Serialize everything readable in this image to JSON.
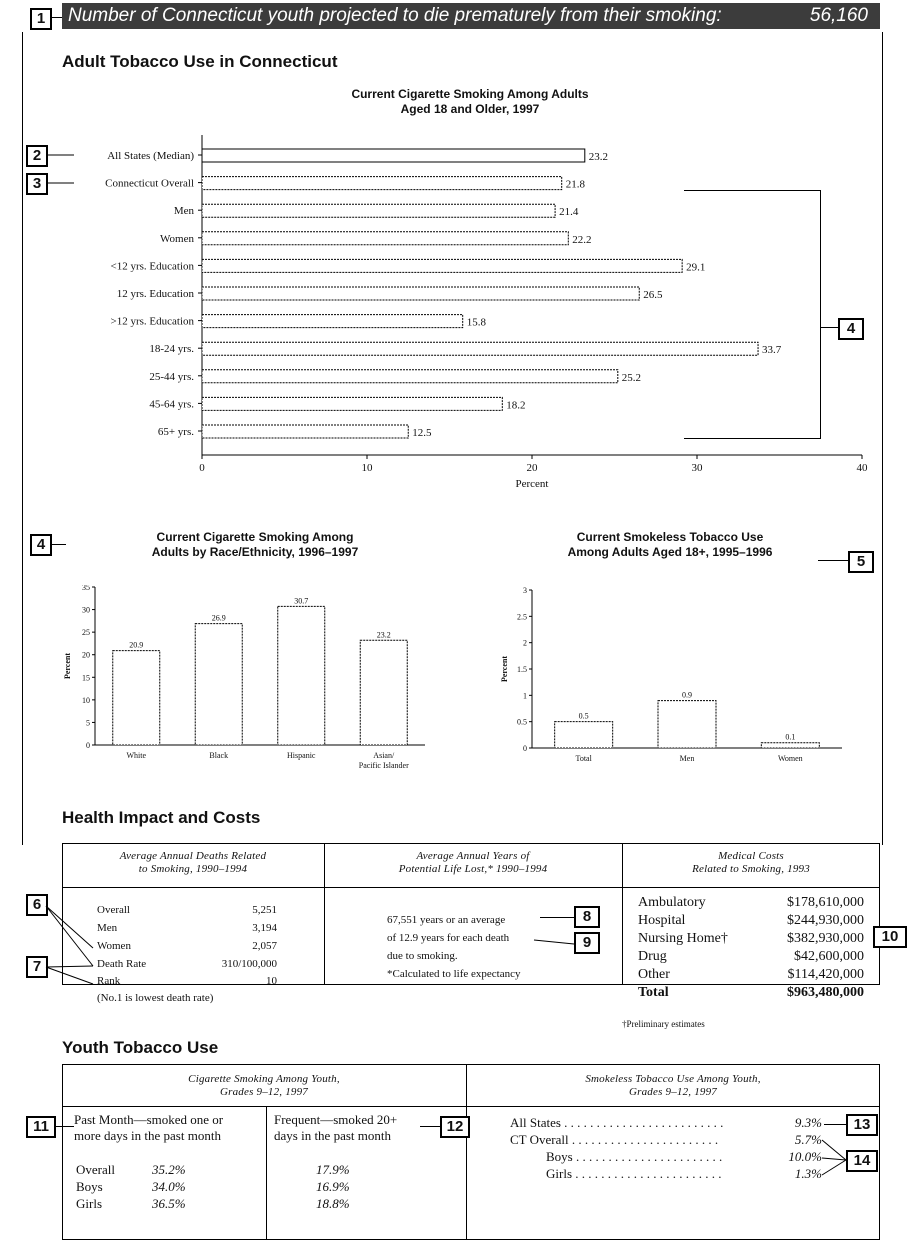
{
  "banner": {
    "text": "Number of Connecticut youth projected to die prematurely from their smoking:",
    "value": "56,160"
  },
  "callouts": {
    "c1": "1",
    "c2": "2",
    "c3": "3",
    "c4a": "4",
    "c4b": "4",
    "c5": "5",
    "c6": "6",
    "c7": "7",
    "c8": "8",
    "c9": "9",
    "c10": "10",
    "c11": "11",
    "c12": "12",
    "c13": "13",
    "c14": "14"
  },
  "adult_section": {
    "title": "Adult Tobacco Use in Connecticut"
  },
  "main_chart_title": {
    "line1": "Current Cigarette Smoking Among Adults",
    "line2": "Aged 18 and Older, 1997"
  },
  "race_chart_title": {
    "line1": "Current Cigarette Smoking Among",
    "line2": "Adults by Race/Ethnicity, 1996–1997"
  },
  "smokeless_chart_title": {
    "line1": "Current Smokeless Tobacco Use",
    "line2": "Among Adults Aged 18+, 1995–1996"
  },
  "chart_data": [
    {
      "type": "bar",
      "orientation": "horizontal",
      "title": "Current Cigarette Smoking Among Adults Aged 18 and Older, 1997",
      "categories": [
        "All States (Median)",
        "Connecticut Overall",
        "Men",
        "Women",
        "<12 yrs. Education",
        "12 yrs. Education",
        ">12 yrs. Education",
        "18-24 yrs.",
        "25-44 yrs.",
        "45-64 yrs.",
        "65+ yrs."
      ],
      "values": [
        23.2,
        21.8,
        21.4,
        22.2,
        29.1,
        26.5,
        15.8,
        33.7,
        25.2,
        18.2,
        12.5
      ],
      "value_labels": [
        "23.2",
        "21.8",
        "21.4",
        "22.2",
        "29.1",
        "26.5",
        "15.8",
        "33.7",
        "25.2",
        "18.2",
        "12.5"
      ],
      "xlim": [
        0,
        40
      ],
      "xticks": [
        "0",
        "10",
        "20",
        "30",
        "40"
      ],
      "xlabel": "Percent"
    },
    {
      "type": "bar",
      "title": "Current Cigarette Smoking Among Adults by Race/Ethnicity, 1996–1997",
      "categories": [
        "White",
        "Black",
        "Hispanic",
        "Asian/"
      ],
      "category_sublines": [
        "",
        "",
        "",
        "Pacific Islander"
      ],
      "values": [
        20.9,
        26.9,
        30.7,
        23.2
      ],
      "value_labels": [
        "20.9",
        "26.9",
        "30.7",
        "23.2"
      ],
      "ylim": [
        0,
        35
      ],
      "yticks": [
        "0",
        "5",
        "10",
        "15",
        "20",
        "25",
        "30",
        "35"
      ],
      "ylabel": "Percent"
    },
    {
      "type": "bar",
      "title": "Current Smokeless Tobacco Use Among Adults Aged 18+, 1995–1996",
      "categories": [
        "Total",
        "Men",
        "Women"
      ],
      "values": [
        0.5,
        0.9,
        0.1
      ],
      "value_labels": [
        "0.5",
        "0.9",
        "0.1"
      ],
      "ylim": [
        0,
        3
      ],
      "yticks": [
        "0",
        "0.5",
        "1",
        "1.5",
        "2",
        "2.5",
        "3"
      ],
      "ylabel": "Percent"
    }
  ],
  "health": {
    "title": "Health Impact and Costs",
    "deaths": {
      "header1": "Average Annual Deaths Related",
      "header2": "to Smoking, 1990–1994",
      "rows": [
        {
          "label": "Overall",
          "value": "5,251"
        },
        {
          "label": "Men",
          "value": "3,194"
        },
        {
          "label": "Women",
          "value": "2,057"
        },
        {
          "label": "Death Rate",
          "value": "310/100,000"
        },
        {
          "label": "Rank",
          "value": "10"
        }
      ],
      "note": "(No.1 is lowest death rate)"
    },
    "ypll": {
      "header1": "Average Annual Years of",
      "header2": "Potential Life Lost,* 1990–1994",
      "line1": "67,551 years or an average",
      "line2": "of 12.9 years for each death",
      "line3": "due to smoking.",
      "note": "*Calculated to life expectancy"
    },
    "costs": {
      "header1": "Medical Costs",
      "header2": "Related to Smoking, 1993",
      "rows": [
        {
          "label": "Ambulatory",
          "value": "$178,610,000"
        },
        {
          "label": "Hospital",
          "value": "$244,930,000"
        },
        {
          "label": "Nursing Home†",
          "value": "$382,930,000"
        },
        {
          "label": "Drug",
          "value": "$42,600,000"
        },
        {
          "label": "Other",
          "value": "$114,420,000"
        },
        {
          "label": "Total",
          "value": "$963,480,000"
        }
      ],
      "footnote": "†Preliminary estimates"
    }
  },
  "youth": {
    "title": "Youth Tobacco Use",
    "cig": {
      "header1": "Cigarette Smoking Among Youth,",
      "header2": "Grades 9–12, 1997",
      "pm_line1": "Past Month—smoked one or",
      "pm_line2": "more days in the past month",
      "fr_line1": "Frequent—smoked 20+",
      "fr_line2": "days in the past month",
      "rows": [
        {
          "label": "Overall",
          "pm": "35.2%",
          "fr": "17.9%"
        },
        {
          "label": "Boys",
          "pm": "34.0%",
          "fr": "16.9%"
        },
        {
          "label": "Girls",
          "pm": "36.5%",
          "fr": "18.8%"
        }
      ]
    },
    "smokeless": {
      "header1": "Smokeless Tobacco Use Among Youth,",
      "header2": "Grades 9–12, 1997",
      "rows": [
        {
          "label": "All States",
          "dots": " . . . . . . . . . . . . . . . . . . . . . . . . . ",
          "value": "9.3%"
        },
        {
          "label": "CT Overall",
          "dots": " . . . . . . . . . . . . . . . . . . . . . . . ",
          "value": "5.7%"
        },
        {
          "label": "Boys",
          "dots": " . . . . . . . . . . . . . . . . . . . . . . . ",
          "value": "10.0%"
        },
        {
          "label": "Girls",
          "dots": " . . . . . . . . . . . . . . . . . . . . . . . ",
          "value": "1.3%"
        }
      ]
    }
  }
}
